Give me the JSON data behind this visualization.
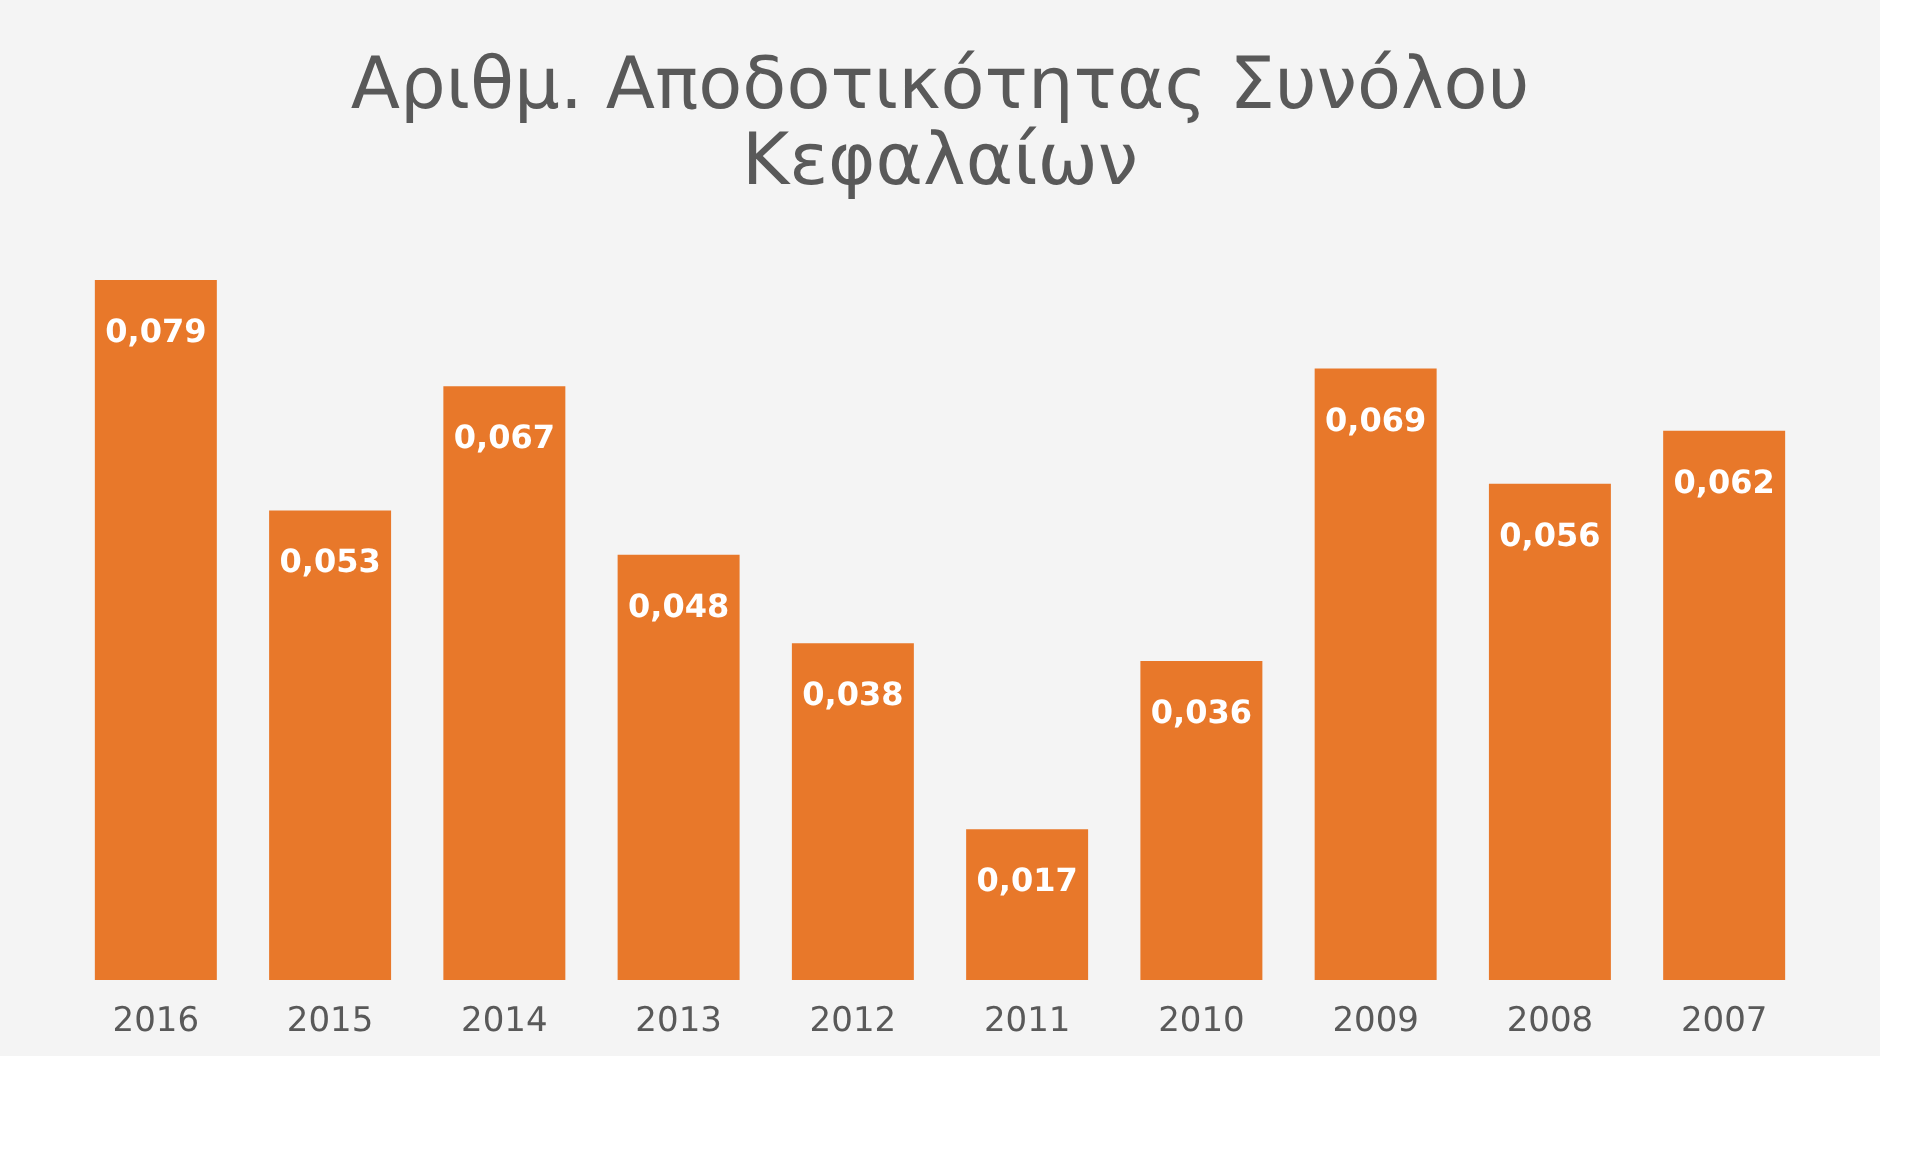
{
  "chart_data": {
    "type": "bar",
    "title": "Αριθμ. Αποδοτικότητας Συνόλου Κεφαλαίων",
    "categories": [
      "2016",
      "2015",
      "2014",
      "2013",
      "2012",
      "2011",
      "2010",
      "2009",
      "2008",
      "2007"
    ],
    "values": [
      0.079,
      0.053,
      0.067,
      0.048,
      0.038,
      0.017,
      0.036,
      0.069,
      0.056,
      0.062
    ],
    "value_labels": [
      "0,079",
      "0,053",
      "0,067",
      "0,048",
      "0,038",
      "0,017",
      "0,036",
      "0,069",
      "0,056",
      "0,062"
    ],
    "color": "#e8782a",
    "grid": false,
    "tick_labels": "x"
  }
}
